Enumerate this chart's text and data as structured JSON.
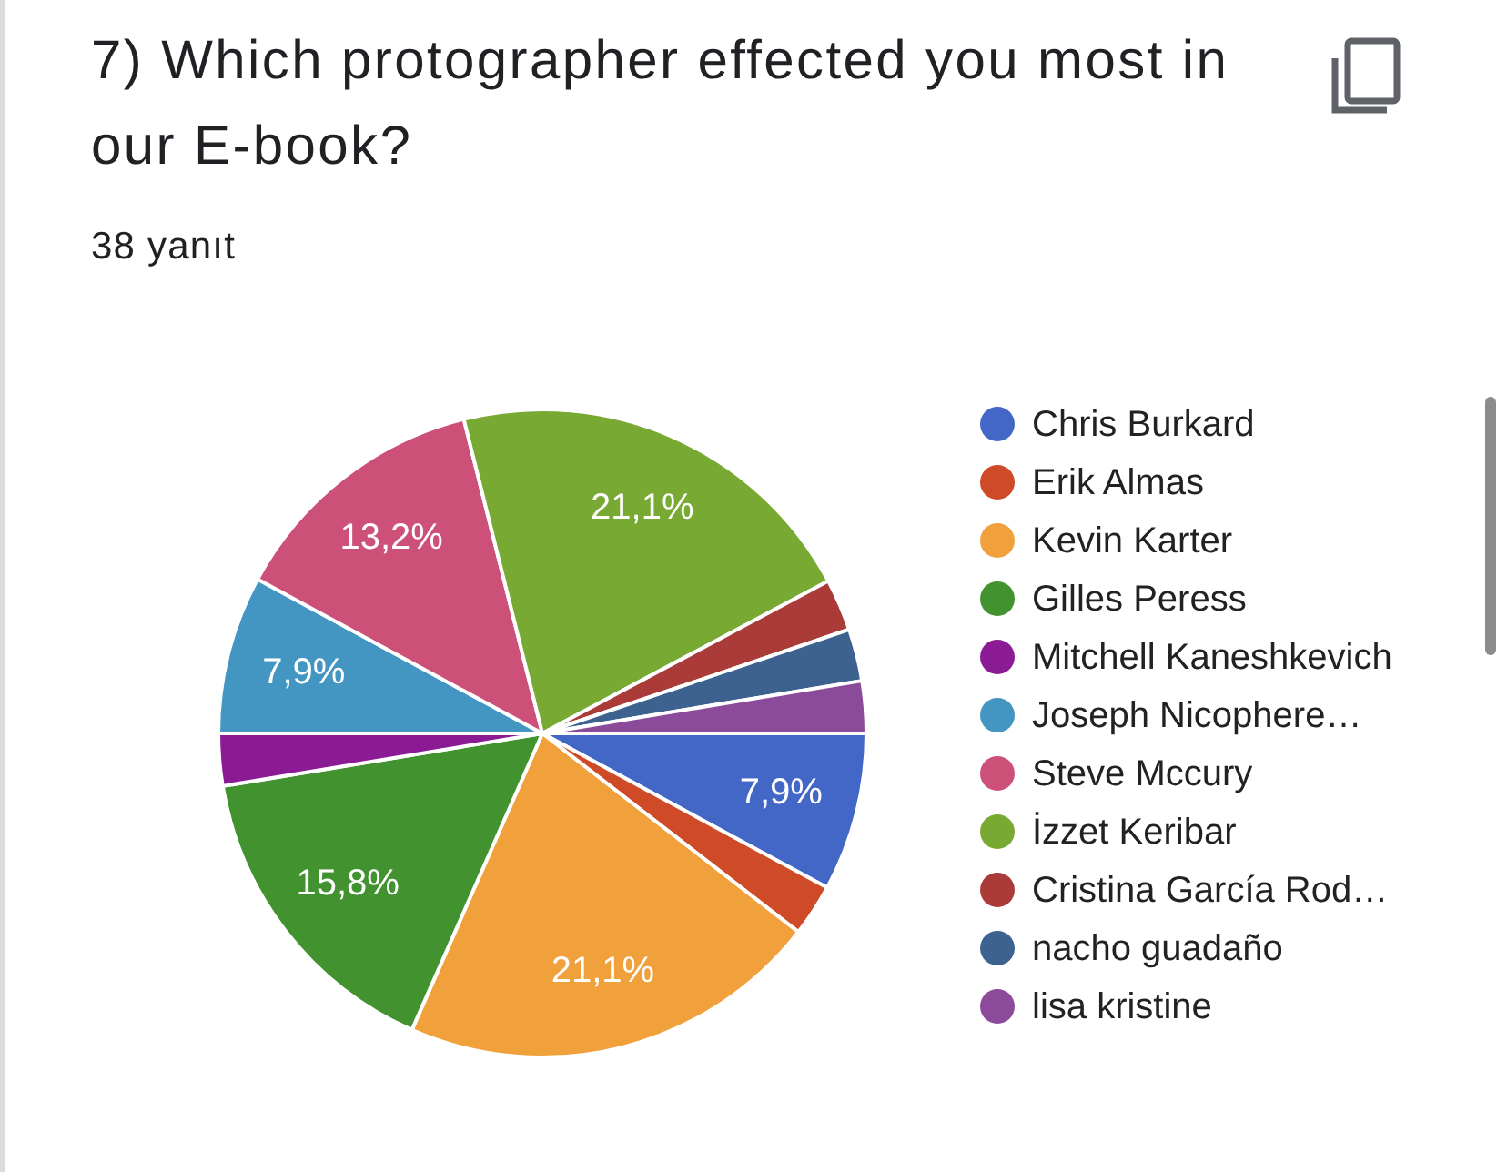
{
  "chart_data": {
    "type": "pie",
    "title": "7) Which protographer effected you most in our E-book?",
    "subtitle": "38 yanıt",
    "categories": [
      "Chris Burkard",
      "Erik Almas",
      "Kevin Karter",
      "Gilles Peress",
      "Mitchell Kaneshkevich",
      "Joseph Nicophere…",
      "Steve Mccury",
      "İzzet Keribar",
      "Cristina García Rod…",
      "nacho guadaño",
      "lisa kristine"
    ],
    "values": [
      7.9,
      2.6,
      21.1,
      15.8,
      2.6,
      7.9,
      13.2,
      21.1,
      2.6,
      2.6,
      2.6
    ],
    "colors": [
      "#4267c6",
      "#cf4a26",
      "#f0a13c",
      "#42922f",
      "#8a1b94",
      "#4396c2",
      "#cc5078",
      "#78a933",
      "#aa3b38",
      "#3d6290",
      "#8b4a9a"
    ],
    "value_labels": [
      "7,9%",
      null,
      "21,1%",
      "15,8%",
      null,
      "7,9%",
      "13,2%",
      "21,1%",
      null,
      null,
      null
    ],
    "legend": "right"
  }
}
